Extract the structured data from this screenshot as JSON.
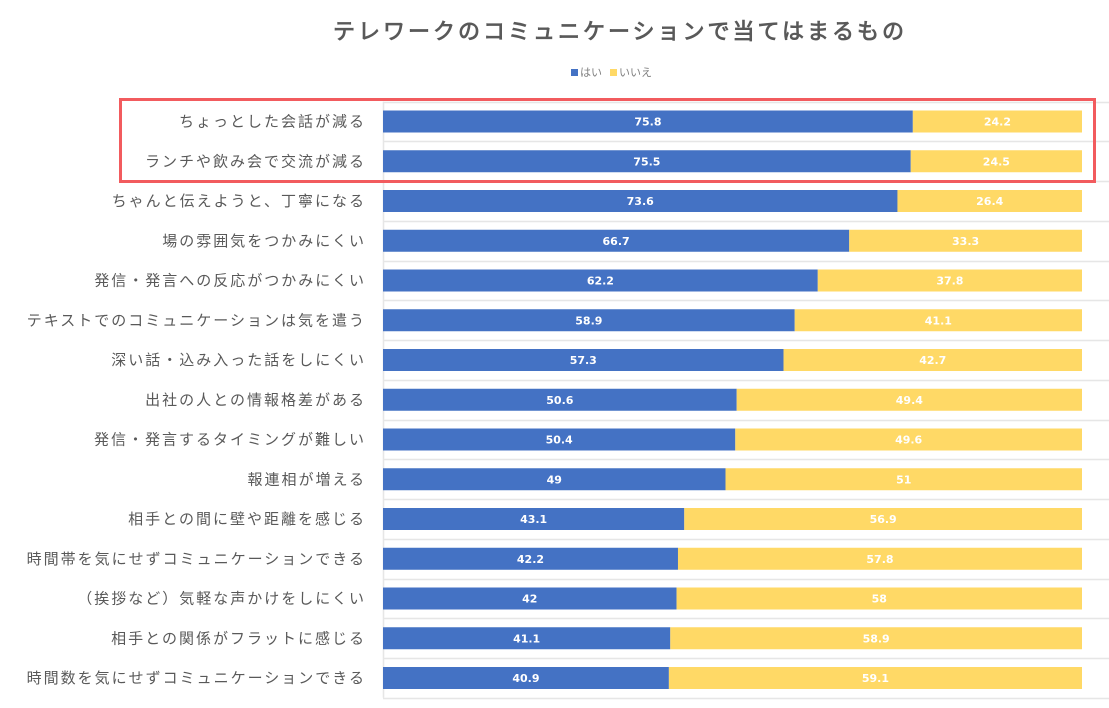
{
  "colors": {
    "yes": "#4472c4",
    "no": "#ffd966",
    "highlight": "#f25b5e",
    "grid": "#e6e6e6",
    "text": "#595959"
  },
  "legend": {
    "items": [
      {
        "label": "はい",
        "color": "#4472c4"
      },
      {
        "label": "いいえ",
        "color": "#ffd966"
      }
    ]
  },
  "chart_data": {
    "type": "bar",
    "orientation": "horizontal",
    "stacked": "100%",
    "title": "テレワークのコミュニケーションで当てはまるもの",
    "xlabel": "",
    "ylabel": "",
    "xlim": [
      0,
      100
    ],
    "grid": true,
    "legend_position": "top-center",
    "categories": [
      "ちょっとした会話が減る",
      "ランチや飲み会で交流が減る",
      "ちゃんと伝えようと、丁寧になる",
      "場の雰囲気をつかみにくい",
      "発信・発言への反応がつかみにくい",
      "テキストでのコミュニケーションは気を遣う",
      "深い話・込み入った話をしにくい",
      "出社の人との情報格差がある",
      "発信・発言するタイミングが難しい",
      "報連相が増える",
      "相手との間に壁や距離を感じる",
      "時間帯を気にせずコミュニケーションできる",
      "（挨拶など）気軽な声かけをしにくい",
      "相手との関係がフラットに感じる",
      "時間数を気にせずコミュニケーションできる"
    ],
    "series": [
      {
        "name": "はい",
        "color": "#4472c4",
        "values": [
          75.8,
          75.5,
          73.6,
          66.7,
          62.2,
          58.9,
          57.3,
          50.6,
          50.4,
          49,
          43.1,
          42.2,
          42,
          41.1,
          40.9
        ],
        "labels": [
          "75.8",
          "75.5",
          "73.6",
          "66.7",
          "62.2",
          "58.9",
          "57.3",
          "50.6",
          "50.4",
          "49",
          "43.1",
          "42.2",
          "42",
          "41.1",
          "40.9"
        ]
      },
      {
        "name": "いいえ",
        "color": "#ffd966",
        "values": [
          24.2,
          24.5,
          26.4,
          33.3,
          37.8,
          41.1,
          42.7,
          49.4,
          49.6,
          51,
          56.9,
          57.8,
          58,
          58.9,
          59.1
        ],
        "labels": [
          "24.2",
          "24.5",
          "26.4",
          "33.3",
          "37.8",
          "41.1",
          "42.7",
          "49.4",
          "49.6",
          "51",
          "56.9",
          "57.8",
          "58",
          "58.9",
          "59.1"
        ]
      }
    ],
    "highlighted_categories": [
      "ちょっとした会話が減る",
      "ランチや飲み会で交流が減る"
    ]
  }
}
